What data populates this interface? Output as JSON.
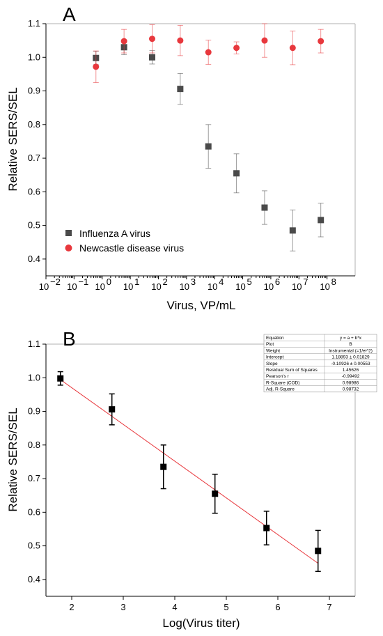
{
  "chart_data": [
    {
      "panel_label": "A",
      "type": "scatter",
      "xscale": "log",
      "xlabel": "Virus, VP/mL",
      "ylabel": "Relative SERS/SEL",
      "xlim": [
        0.01,
        1000000000
      ],
      "ylim": [
        0.35,
        1.1
      ],
      "xtick_labels": [
        "10",
        "10",
        "10",
        "10",
        "10",
        "10",
        "10",
        "10",
        "10",
        "10",
        "10"
      ],
      "xtick_exponents": [
        "−2",
        "−1",
        "0",
        "1",
        "2",
        "3",
        "4",
        "5",
        "6",
        "7",
        "8"
      ],
      "ytick_labels": [
        "0.4",
        "0.5",
        "0.6",
        "0.7",
        "0.8",
        "0.9",
        "1.0",
        "1.1"
      ],
      "legend_position": "bottom-left",
      "series": [
        {
          "name": "Influenza A virus",
          "color": "#4a4a4a",
          "marker": "square",
          "x": [
            0.6,
            6,
            60,
            600,
            6000,
            60000,
            600000,
            6000000,
            60000000
          ],
          "y": [
            0.998,
            1.03,
            1.0,
            0.906,
            0.735,
            0.655,
            0.553,
            0.485,
            0.516
          ],
          "err": [
            0.02,
            0.022,
            0.02,
            0.046,
            0.065,
            0.058,
            0.05,
            0.061,
            0.05
          ]
        },
        {
          "name": "Newcastle disease virus",
          "color": "#e8383d",
          "marker": "circle",
          "x": [
            0.6,
            6,
            60,
            600,
            6000,
            60000,
            600000,
            6000000,
            60000000
          ],
          "y": [
            0.972,
            1.048,
            1.055,
            1.05,
            1.015,
            1.028,
            1.05,
            1.028,
            1.048
          ],
          "err": [
            0.047,
            0.035,
            0.042,
            0.045,
            0.036,
            0.018,
            0.05,
            0.05,
            0.035
          ]
        }
      ]
    },
    {
      "panel_label": "B",
      "type": "scatter",
      "xlabel": "Log(Virus titer)",
      "ylabel": "Relative SERS/SEL",
      "xlim": [
        1.5,
        7.5
      ],
      "ylim": [
        0.35,
        1.1
      ],
      "xtick_labels": [
        "2",
        "3",
        "4",
        "5",
        "6",
        "7"
      ],
      "ytick_labels": [
        "0.4",
        "0.5",
        "0.6",
        "0.7",
        "0.8",
        "0.9",
        "1.0",
        "1.1"
      ],
      "series": [
        {
          "color": "#000000",
          "marker": "square",
          "x": [
            1.78,
            2.78,
            3.78,
            4.78,
            5.78,
            6.78
          ],
          "y": [
            0.998,
            0.906,
            0.735,
            0.655,
            0.553,
            0.485
          ],
          "err": [
            0.02,
            0.046,
            0.065,
            0.058,
            0.05,
            0.061
          ]
        }
      ],
      "fit_line": {
        "color": "#e8383d",
        "intercept": 1.18893,
        "slope": -0.10926,
        "x_range": [
          1.78,
          6.78
        ]
      },
      "fit_table": [
        [
          "Equation",
          "y = a + b*x"
        ],
        [
          "Plot",
          "B"
        ],
        [
          "Weight",
          "Instrumental (=1/ei^2)"
        ],
        [
          "Intercept",
          "1.18893 ± 0.01829"
        ],
        [
          "Slope",
          "-0.10926 ± 0.00553"
        ],
        [
          "Residual Sum of Squares",
          "1.45626"
        ],
        [
          "Pearson's r",
          "-0.99492"
        ],
        [
          "R-Square (COD)",
          "0.98986"
        ],
        [
          "Adj. R-Square",
          "0.98732"
        ]
      ]
    }
  ]
}
